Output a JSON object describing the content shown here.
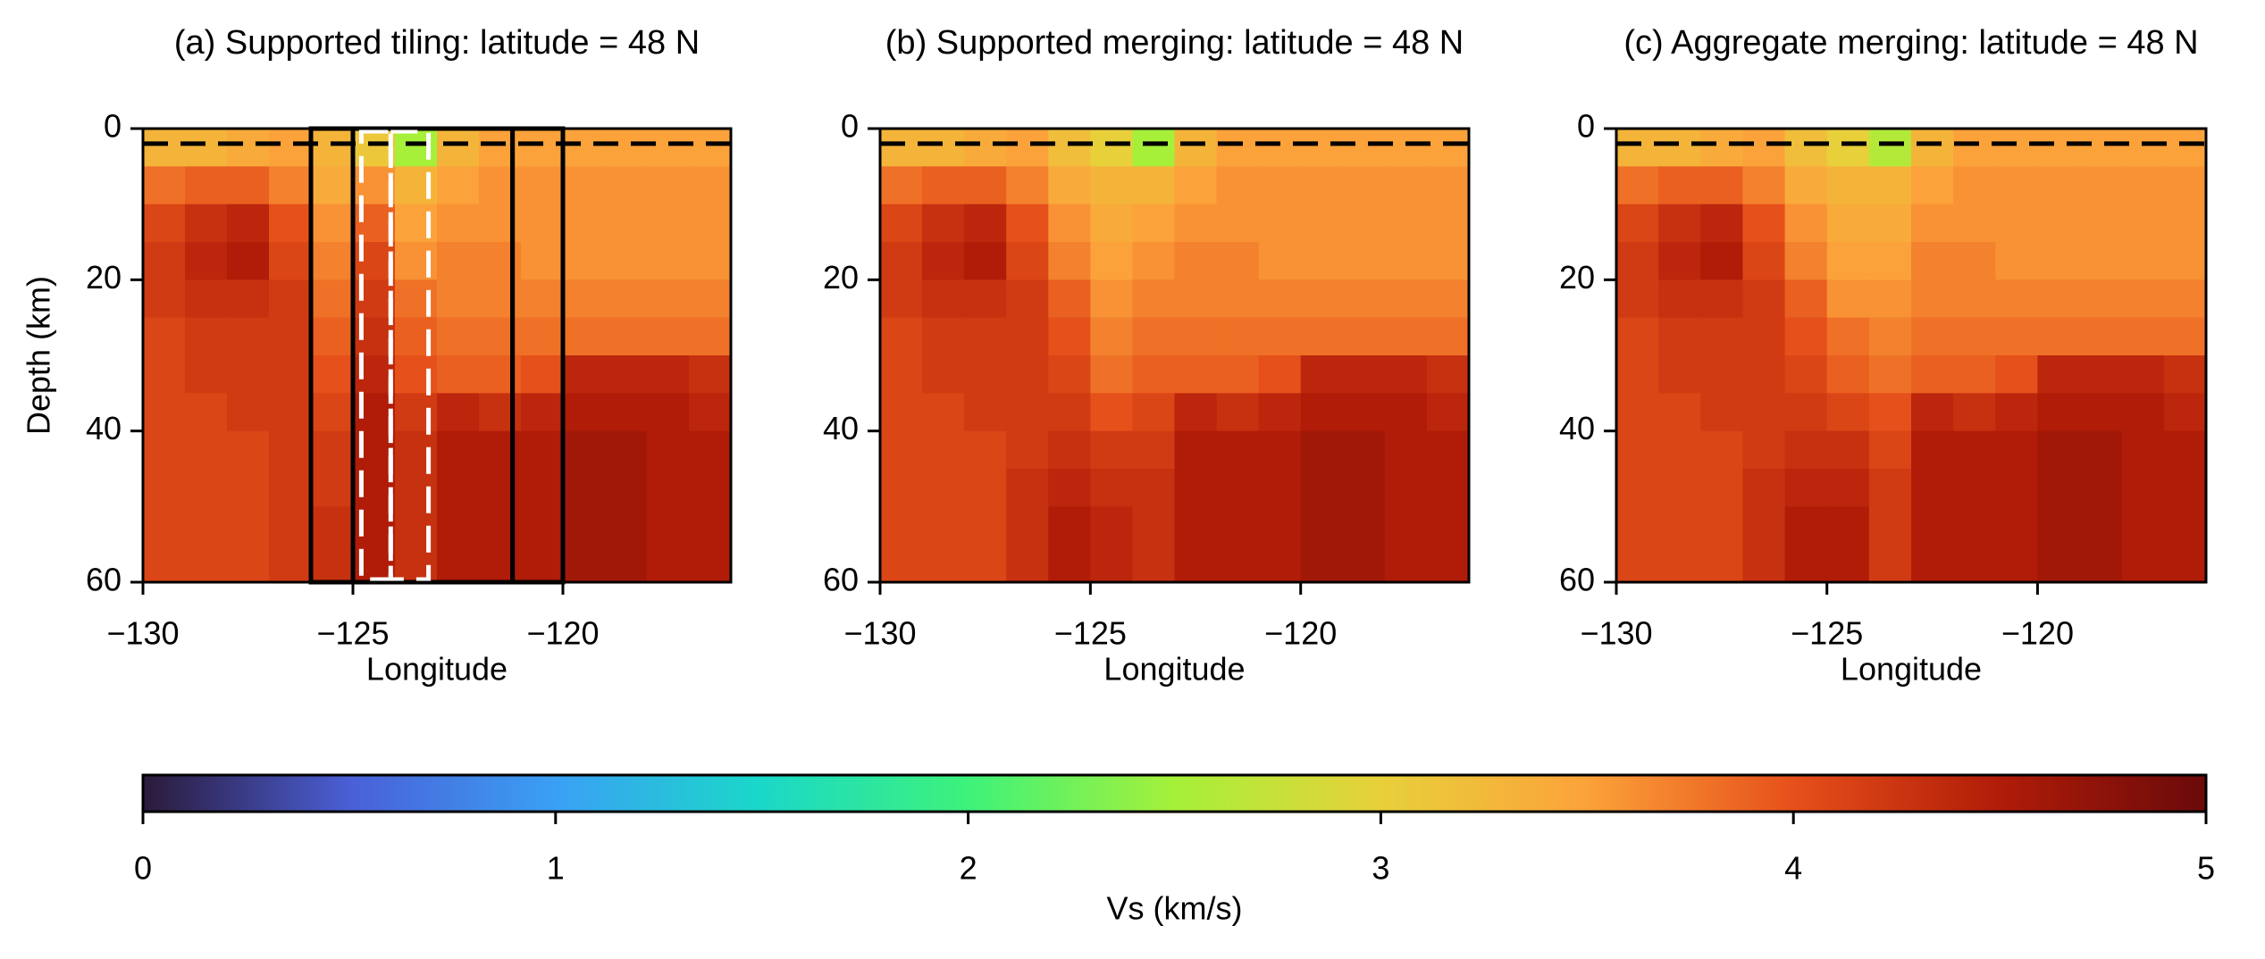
{
  "chart_data": [
    {
      "type": "heatmap",
      "title": "(a) Supported tiling: latitude = 48 N",
      "xlabel": "Longitude",
      "ylabel": "Depth (km)",
      "x": [
        -130,
        -129,
        -128,
        -127,
        -126,
        -125,
        -124,
        -123,
        -122,
        -121,
        -120,
        -119,
        -118,
        -117,
        -116
      ],
      "y": [
        0,
        5,
        10,
        15,
        20,
        25,
        30,
        35,
        40,
        45,
        50,
        55,
        60
      ],
      "z": [
        [
          3.3,
          3.3,
          3.4,
          3.5,
          3.3,
          3.1,
          2.5,
          3.3,
          3.5,
          3.5,
          3.5,
          3.5,
          3.5,
          3.5
        ],
        [
          3.8,
          3.9,
          3.9,
          3.7,
          3.4,
          3.6,
          3.3,
          3.5,
          3.6,
          3.6,
          3.6,
          3.6,
          3.6,
          3.6
        ],
        [
          4.1,
          4.3,
          4.4,
          4.0,
          3.6,
          3.9,
          3.5,
          3.6,
          3.6,
          3.6,
          3.6,
          3.6,
          3.6,
          3.6
        ],
        [
          4.2,
          4.4,
          4.5,
          4.1,
          3.7,
          4.1,
          3.6,
          3.7,
          3.7,
          3.6,
          3.6,
          3.6,
          3.6,
          3.6
        ],
        [
          4.2,
          4.3,
          4.3,
          4.2,
          3.8,
          4.2,
          3.8,
          3.7,
          3.7,
          3.7,
          3.7,
          3.7,
          3.7,
          3.7
        ],
        [
          4.1,
          4.2,
          4.2,
          4.2,
          3.9,
          4.3,
          3.9,
          3.8,
          3.8,
          3.8,
          3.8,
          3.8,
          3.8,
          3.8
        ],
        [
          4.1,
          4.2,
          4.2,
          4.2,
          4.0,
          4.4,
          4.0,
          3.9,
          3.9,
          4.0,
          4.4,
          4.4,
          4.4,
          4.3
        ],
        [
          4.1,
          4.1,
          4.2,
          4.2,
          4.1,
          4.5,
          4.2,
          4.4,
          4.3,
          4.4,
          4.5,
          4.5,
          4.5,
          4.4
        ],
        [
          4.1,
          4.1,
          4.1,
          4.2,
          4.2,
          4.5,
          4.3,
          4.5,
          4.5,
          4.5,
          4.6,
          4.6,
          4.5,
          4.5
        ],
        [
          4.1,
          4.1,
          4.1,
          4.2,
          4.2,
          4.5,
          4.3,
          4.5,
          4.5,
          4.5,
          4.6,
          4.6,
          4.5,
          4.5
        ],
        [
          4.1,
          4.1,
          4.1,
          4.2,
          4.3,
          4.5,
          4.3,
          4.5,
          4.5,
          4.5,
          4.6,
          4.6,
          4.5,
          4.5
        ],
        [
          4.1,
          4.1,
          4.1,
          4.2,
          4.3,
          4.5,
          4.3,
          4.5,
          4.5,
          4.5,
          4.6,
          4.6,
          4.5,
          4.5
        ]
      ],
      "xlim": [
        -130,
        -116
      ],
      "ylim": [
        0,
        60
      ],
      "yinvert": true,
      "xticks": [
        {
          "value": -130,
          "label": "−130"
        },
        {
          "value": -125,
          "label": "−125"
        },
        {
          "value": -120,
          "label": "−120"
        }
      ],
      "yticks": [
        0,
        20,
        40,
        60
      ],
      "reference_depth": 2,
      "tiles": [
        [
          -126,
          -125
        ],
        [
          -125,
          -121.2
        ],
        [
          -121.2,
          -120
        ]
      ],
      "dashed_tiles": [
        [
          -124.8,
          -124.1
        ],
        [
          -124.1,
          -123.2
        ]
      ]
    },
    {
      "type": "heatmap",
      "title": "(b) Supported merging: latitude = 48 N",
      "xlabel": "Longitude",
      "x": [
        -130,
        -129,
        -128,
        -127,
        -126,
        -125,
        -124,
        -123,
        -122,
        -121,
        -120,
        -119,
        -118,
        -117,
        -116
      ],
      "y": [
        0,
        5,
        10,
        15,
        20,
        25,
        30,
        35,
        40,
        45,
        50,
        55,
        60
      ],
      "z": [
        [
          3.3,
          3.3,
          3.4,
          3.5,
          3.2,
          3.0,
          2.5,
          3.3,
          3.5,
          3.5,
          3.5,
          3.5,
          3.5,
          3.5
        ],
        [
          3.8,
          3.9,
          3.9,
          3.7,
          3.4,
          3.3,
          3.3,
          3.5,
          3.6,
          3.6,
          3.6,
          3.6,
          3.6,
          3.6
        ],
        [
          4.1,
          4.3,
          4.4,
          4.0,
          3.6,
          3.4,
          3.5,
          3.6,
          3.6,
          3.6,
          3.6,
          3.6,
          3.6,
          3.6
        ],
        [
          4.2,
          4.4,
          4.5,
          4.1,
          3.7,
          3.5,
          3.6,
          3.7,
          3.7,
          3.6,
          3.6,
          3.6,
          3.6,
          3.6
        ],
        [
          4.2,
          4.3,
          4.3,
          4.2,
          3.9,
          3.6,
          3.7,
          3.7,
          3.7,
          3.7,
          3.7,
          3.7,
          3.7,
          3.7
        ],
        [
          4.1,
          4.2,
          4.2,
          4.2,
          4.0,
          3.7,
          3.8,
          3.8,
          3.8,
          3.8,
          3.8,
          3.8,
          3.8,
          3.8
        ],
        [
          4.1,
          4.2,
          4.2,
          4.2,
          4.1,
          3.8,
          3.9,
          3.9,
          3.9,
          4.0,
          4.4,
          4.4,
          4.4,
          4.3
        ],
        [
          4.1,
          4.1,
          4.2,
          4.2,
          4.2,
          4.0,
          4.1,
          4.4,
          4.3,
          4.4,
          4.5,
          4.5,
          4.5,
          4.4
        ],
        [
          4.1,
          4.1,
          4.1,
          4.2,
          4.3,
          4.2,
          4.2,
          4.5,
          4.5,
          4.5,
          4.6,
          4.6,
          4.5,
          4.5
        ],
        [
          4.1,
          4.1,
          4.1,
          4.3,
          4.4,
          4.3,
          4.3,
          4.5,
          4.5,
          4.5,
          4.6,
          4.6,
          4.5,
          4.5
        ],
        [
          4.1,
          4.1,
          4.1,
          4.3,
          4.5,
          4.4,
          4.3,
          4.5,
          4.5,
          4.5,
          4.6,
          4.6,
          4.5,
          4.5
        ],
        [
          4.1,
          4.1,
          4.1,
          4.3,
          4.5,
          4.4,
          4.3,
          4.5,
          4.5,
          4.5,
          4.6,
          4.6,
          4.5,
          4.5
        ]
      ],
      "xlim": [
        -130,
        -116
      ],
      "ylim": [
        0,
        60
      ],
      "yinvert": true,
      "xticks": [
        {
          "value": -130,
          "label": "−130"
        },
        {
          "value": -125,
          "label": "−125"
        },
        {
          "value": -120,
          "label": "−120"
        }
      ],
      "yticks": [
        0,
        20,
        40,
        60
      ],
      "reference_depth": 2
    },
    {
      "type": "heatmap",
      "title": "(c) Aggregate merging: latitude = 48 N",
      "xlabel": "Longitude",
      "x": [
        -130,
        -129,
        -128,
        -127,
        -126,
        -125,
        -124,
        -123,
        -122,
        -121,
        -120,
        -119,
        -118,
        -117,
        -116
      ],
      "y": [
        0,
        5,
        10,
        15,
        20,
        25,
        30,
        35,
        40,
        45,
        50,
        55,
        60
      ],
      "z": [
        [
          3.3,
          3.3,
          3.4,
          3.5,
          3.2,
          3.0,
          2.6,
          3.3,
          3.5,
          3.5,
          3.5,
          3.5,
          3.5,
          3.5
        ],
        [
          3.8,
          3.9,
          3.9,
          3.7,
          3.4,
          3.3,
          3.3,
          3.5,
          3.6,
          3.6,
          3.6,
          3.6,
          3.6,
          3.6
        ],
        [
          4.1,
          4.3,
          4.4,
          4.0,
          3.6,
          3.4,
          3.4,
          3.6,
          3.6,
          3.6,
          3.6,
          3.6,
          3.6,
          3.6
        ],
        [
          4.2,
          4.4,
          4.5,
          4.1,
          3.7,
          3.5,
          3.5,
          3.7,
          3.7,
          3.6,
          3.6,
          3.6,
          3.6,
          3.6
        ],
        [
          4.2,
          4.3,
          4.3,
          4.2,
          3.9,
          3.6,
          3.6,
          3.7,
          3.7,
          3.7,
          3.7,
          3.7,
          3.7,
          3.7
        ],
        [
          4.1,
          4.2,
          4.2,
          4.2,
          4.0,
          3.8,
          3.7,
          3.8,
          3.8,
          3.8,
          3.8,
          3.8,
          3.8,
          3.8
        ],
        [
          4.1,
          4.2,
          4.2,
          4.2,
          4.1,
          3.9,
          3.8,
          3.9,
          3.9,
          4.0,
          4.4,
          4.4,
          4.4,
          4.3
        ],
        [
          4.1,
          4.1,
          4.2,
          4.2,
          4.2,
          4.1,
          4.0,
          4.4,
          4.3,
          4.4,
          4.5,
          4.5,
          4.5,
          4.4
        ],
        [
          4.1,
          4.1,
          4.1,
          4.2,
          4.3,
          4.3,
          4.1,
          4.5,
          4.5,
          4.5,
          4.6,
          4.6,
          4.5,
          4.5
        ],
        [
          4.1,
          4.1,
          4.1,
          4.3,
          4.4,
          4.4,
          4.2,
          4.5,
          4.5,
          4.5,
          4.6,
          4.6,
          4.5,
          4.5
        ],
        [
          4.1,
          4.1,
          4.1,
          4.3,
          4.5,
          4.5,
          4.2,
          4.5,
          4.5,
          4.5,
          4.6,
          4.6,
          4.5,
          4.5
        ],
        [
          4.1,
          4.1,
          4.1,
          4.3,
          4.5,
          4.5,
          4.2,
          4.5,
          4.5,
          4.5,
          4.6,
          4.6,
          4.5,
          4.5
        ]
      ],
      "xlim": [
        -130,
        -116
      ],
      "ylim": [
        0,
        60
      ],
      "yinvert": true,
      "xticks": [
        {
          "value": -130,
          "label": "−130"
        },
        {
          "value": -125,
          "label": "−125"
        },
        {
          "value": -120,
          "label": "−120"
        }
      ],
      "yticks": [
        0,
        20,
        40,
        60
      ],
      "reference_depth": 2
    }
  ],
  "colorbar": {
    "label": "Vs (km/s)",
    "lim": [
      0,
      5
    ],
    "ticks": [
      0,
      1,
      2,
      3,
      4,
      5
    ],
    "colormap": [
      "#2b1a3a",
      "#4a5fd6",
      "#3aa0f5",
      "#1ad8c8",
      "#3ef27a",
      "#a6f03a",
      "#e8d03a",
      "#fca23a",
      "#e6501a",
      "#b01c08",
      "#6a0a0a"
    ]
  }
}
